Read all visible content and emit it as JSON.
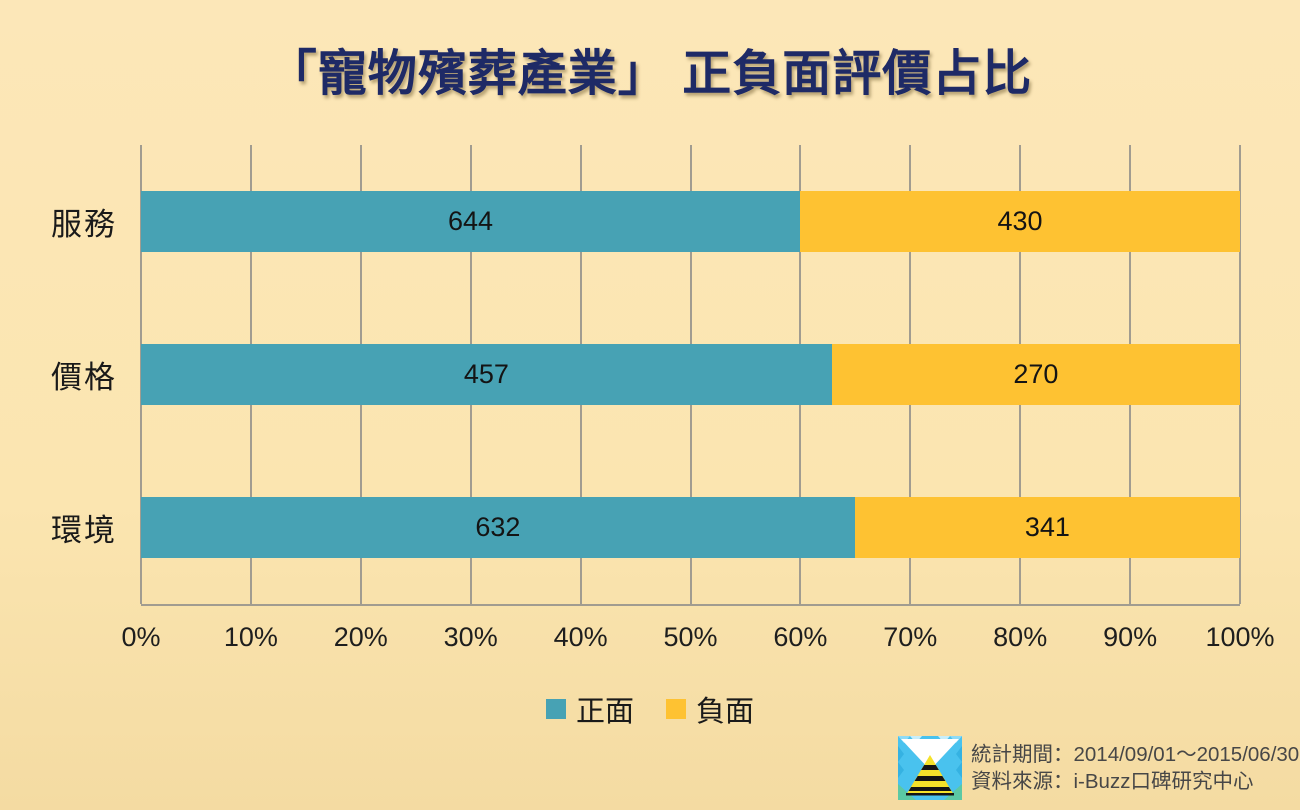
{
  "title": "「寵物殯葬產業」 正負面評價占比",
  "colors": {
    "background": "#FBE5B0",
    "positive": "#47A2B4",
    "negative": "#FEC232",
    "title": "#1E2A66",
    "gridline": "#A19C90",
    "value_text": "#141414",
    "footer_text": "#474747"
  },
  "chart_data": {
    "type": "bar",
    "orientation": "horizontal",
    "stacked": true,
    "percent_axis": true,
    "title": "「寵物殯葬產業」 正負面評價占比",
    "categories": [
      "服務",
      "價格",
      "環境"
    ],
    "series": [
      {
        "name": "正面",
        "color": "#47A2B4",
        "values": [
          644,
          457,
          632
        ]
      },
      {
        "name": "負面",
        "color": "#FEC232",
        "values": [
          430,
          270,
          341
        ]
      }
    ],
    "xlim": [
      0,
      100
    ],
    "x_ticks": [
      "0%",
      "10%",
      "20%",
      "30%",
      "40%",
      "50%",
      "60%",
      "70%",
      "80%",
      "90%",
      "100%"
    ],
    "grid": "vertical",
    "legend_position": "bottom"
  },
  "footer": {
    "logo": "i-buzz-logo",
    "period": "統計期間：2014/09/01～2015/06/30",
    "source": "資料來源：i-Buzz口碑研究中心"
  }
}
